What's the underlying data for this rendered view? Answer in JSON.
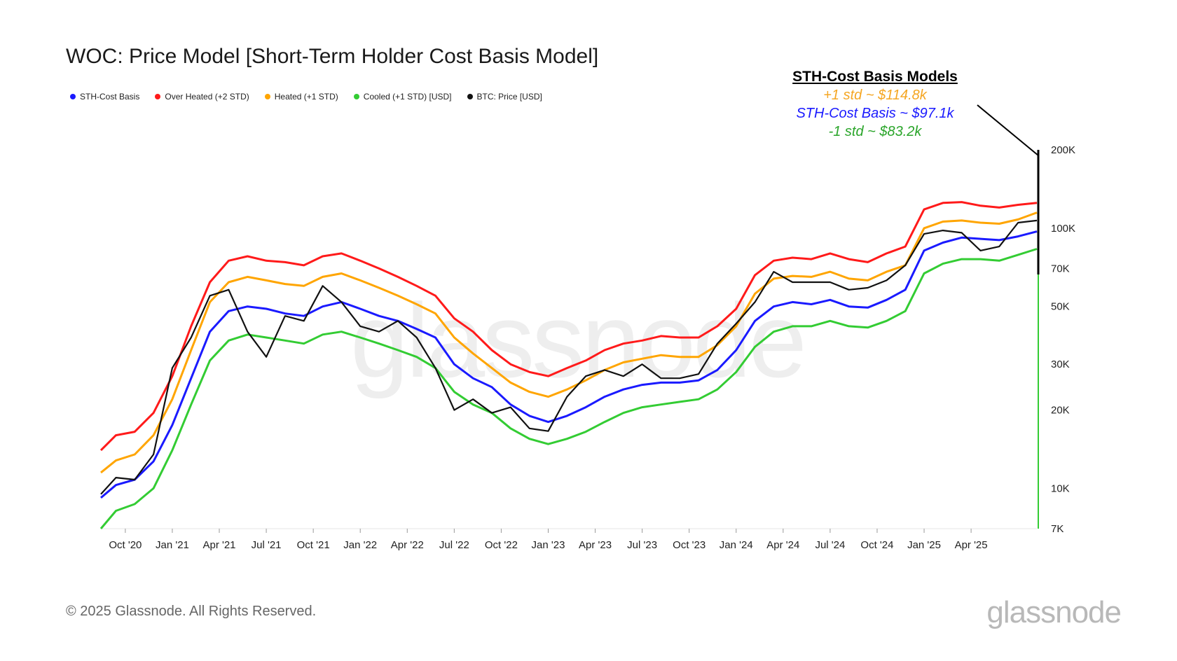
{
  "title": "WOC: Price Model [Short-Term Holder Cost Basis Model]",
  "legend": [
    {
      "label": "STH-Cost Basis",
      "color": "#1a1aff"
    },
    {
      "label": "Over Heated (+2 STD)",
      "color": "#ff1a1a"
    },
    {
      "label": "Heated (+1 STD)",
      "color": "#ffa500"
    },
    {
      "label": "Cooled (+1 STD) [USD]",
      "color": "#33cc33"
    },
    {
      "label": "BTC: Price [USD]",
      "color": "#111111"
    }
  ],
  "callout": {
    "title": "STH-Cost Basis Models",
    "plus_one": "+1 std ~ $114.8k",
    "basis": "STH-Cost Basis ~ $97.1k",
    "minus_one": "-1 std ~ $83.2k"
  },
  "footer": "© 2025 Glassnode. All Rights Reserved.",
  "brand": "glassnode",
  "chart_data": {
    "type": "line",
    "y_scale": "log",
    "ylim": [
      7000,
      200000
    ],
    "y_ticks": [
      {
        "value": 7000,
        "label": "7K"
      },
      {
        "value": 10000,
        "label": "10K"
      },
      {
        "value": 20000,
        "label": "20K"
      },
      {
        "value": 30000,
        "label": "30K"
      },
      {
        "value": 50000,
        "label": "50K"
      },
      {
        "value": 70000,
        "label": "70K"
      },
      {
        "value": 100000,
        "label": "100K"
      },
      {
        "value": 200000,
        "label": "200K"
      }
    ],
    "x_range": [
      2020.62,
      2025.6
    ],
    "x_ticks": [
      {
        "value": 2020.75,
        "label": "Oct '20"
      },
      {
        "value": 2021.0,
        "label": "Jan '21"
      },
      {
        "value": 2021.25,
        "label": "Apr '21"
      },
      {
        "value": 2021.5,
        "label": "Jul '21"
      },
      {
        "value": 2021.75,
        "label": "Oct '21"
      },
      {
        "value": 2022.0,
        "label": "Jan '22"
      },
      {
        "value": 2022.25,
        "label": "Apr '22"
      },
      {
        "value": 2022.5,
        "label": "Jul '22"
      },
      {
        "value": 2022.75,
        "label": "Oct '22"
      },
      {
        "value": 2023.0,
        "label": "Jan '23"
      },
      {
        "value": 2023.25,
        "label": "Apr '23"
      },
      {
        "value": 2023.5,
        "label": "Jul '23"
      },
      {
        "value": 2023.75,
        "label": "Oct '23"
      },
      {
        "value": 2024.0,
        "label": "Jan '24"
      },
      {
        "value": 2024.25,
        "label": "Apr '24"
      },
      {
        "value": 2024.5,
        "label": "Jul '24"
      },
      {
        "value": 2024.75,
        "label": "Oct '24"
      },
      {
        "value": 2025.0,
        "label": "Jan '25"
      },
      {
        "value": 2025.25,
        "label": "Apr '25"
      }
    ],
    "x": [
      2020.62,
      2020.7,
      2020.8,
      2020.9,
      2021.0,
      2021.1,
      2021.2,
      2021.3,
      2021.4,
      2021.5,
      2021.6,
      2021.7,
      2021.8,
      2021.9,
      2022.0,
      2022.1,
      2022.2,
      2022.3,
      2022.4,
      2022.5,
      2022.6,
      2022.7,
      2022.8,
      2022.9,
      2023.0,
      2023.1,
      2023.2,
      2023.3,
      2023.4,
      2023.5,
      2023.6,
      2023.7,
      2023.8,
      2023.9,
      2024.0,
      2024.1,
      2024.2,
      2024.3,
      2024.4,
      2024.5,
      2024.6,
      2024.7,
      2024.8,
      2024.9,
      2025.0,
      2025.1,
      2025.2,
      2025.3,
      2025.4,
      2025.5,
      2025.6
    ],
    "series": [
      {
        "name": "Over Heated (+2 STD)",
        "color": "#ff1a1a",
        "values": [
          14000,
          16000,
          16500,
          19500,
          27000,
          42000,
          62000,
          75000,
          78000,
          75000,
          74000,
          72000,
          78000,
          80000,
          75000,
          70000,
          65000,
          60000,
          55000,
          45000,
          40000,
          34000,
          30000,
          28000,
          27000,
          29000,
          31000,
          34000,
          36000,
          37000,
          38500,
          38000,
          38000,
          42000,
          49000,
          66000,
          75000,
          77000,
          76000,
          80000,
          76000,
          74000,
          80000,
          85000,
          118000,
          125000,
          126000,
          122000,
          120000,
          123000,
          125000
        ]
      },
      {
        "name": "Heated (+1 STD)",
        "color": "#ffa500",
        "values": [
          11500,
          12800,
          13500,
          16000,
          22000,
          34000,
          52000,
          62000,
          65000,
          63000,
          61000,
          60000,
          65000,
          67000,
          63000,
          59000,
          55000,
          51000,
          47000,
          38000,
          33000,
          29000,
          25500,
          23500,
          22500,
          24000,
          26000,
          28500,
          30500,
          31500,
          32500,
          32000,
          32000,
          35500,
          42000,
          56000,
          64000,
          65500,
          65000,
          68000,
          64000,
          63000,
          68000,
          72000,
          100000,
          106000,
          107000,
          105000,
          104000,
          108000,
          114800
        ]
      },
      {
        "name": "STH-Cost Basis",
        "color": "#1a1aff",
        "values": [
          9200,
          10300,
          10800,
          12700,
          17500,
          26500,
          40000,
          48000,
          50000,
          49000,
          47000,
          46000,
          50000,
          52000,
          49000,
          46000,
          44000,
          41000,
          38000,
          30000,
          26500,
          24500,
          21000,
          19000,
          18000,
          19000,
          20500,
          22500,
          24000,
          25000,
          25500,
          25500,
          26000,
          28500,
          34000,
          44000,
          50000,
          52000,
          51000,
          53000,
          50000,
          49500,
          53000,
          58000,
          82000,
          88000,
          92000,
          91000,
          90000,
          93000,
          97100
        ]
      },
      {
        "name": "Cooled (+1 STD) [USD]",
        "color": "#33cc33",
        "values": [
          7000,
          8200,
          8700,
          10000,
          14000,
          21000,
          31000,
          37000,
          39000,
          38000,
          37000,
          36000,
          39000,
          40000,
          38000,
          36000,
          34000,
          32000,
          29000,
          23500,
          21000,
          19500,
          17000,
          15500,
          14800,
          15500,
          16500,
          18000,
          19500,
          20500,
          21000,
          21500,
          22000,
          24000,
          28000,
          35000,
          40000,
          42000,
          42000,
          44000,
          42000,
          41500,
          44000,
          48000,
          67000,
          73000,
          76000,
          76000,
          75000,
          79000,
          83200
        ]
      },
      {
        "name": "BTC: Price [USD]",
        "color": "#111111",
        "values": [
          9500,
          11000,
          10800,
          13500,
          29000,
          38000,
          55000,
          58000,
          40000,
          32000,
          46000,
          44000,
          60000,
          52000,
          42000,
          40000,
          44000,
          38000,
          29000,
          20000,
          22000,
          19500,
          20500,
          17000,
          16600,
          22500,
          27000,
          28500,
          27000,
          30000,
          26500,
          26500,
          27500,
          36000,
          43000,
          52000,
          68000,
          62000,
          62000,
          62000,
          58000,
          59000,
          63000,
          72000,
          95000,
          98000,
          96000,
          82000,
          85000,
          105000,
          107000
        ]
      }
    ]
  }
}
